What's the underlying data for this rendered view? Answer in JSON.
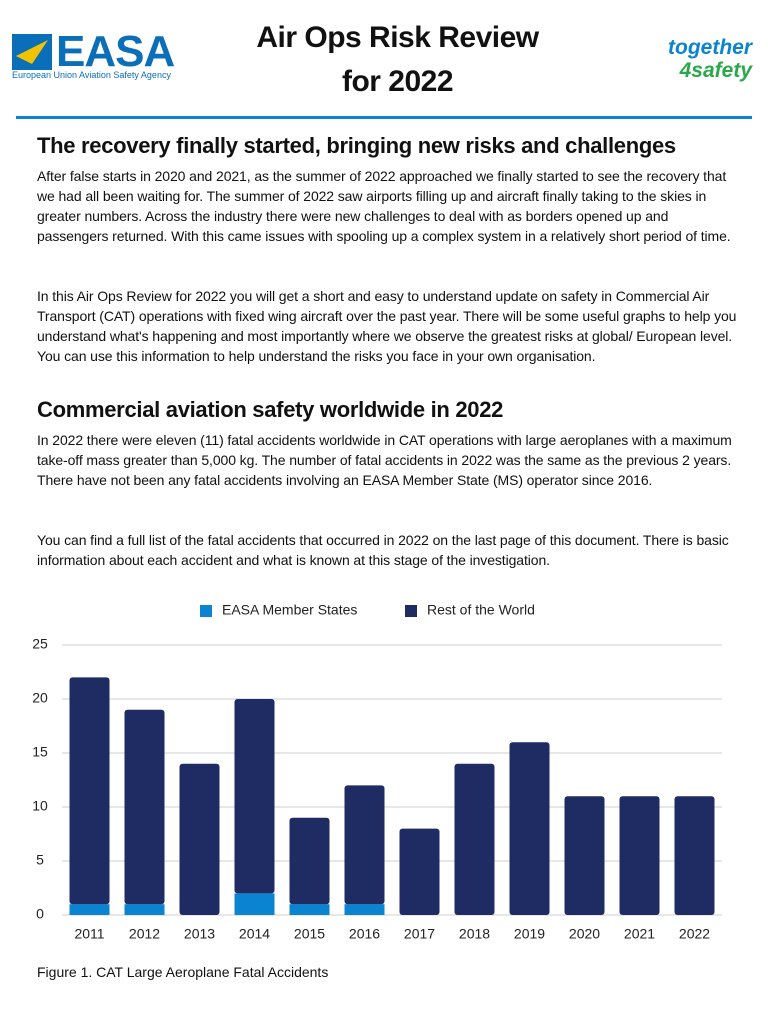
{
  "header": {
    "logo": "EASA",
    "logo_subtitle": "European Union Aviation Safety Agency",
    "title_lines": [
      "Air Ops Risk Review",
      "for 2022"
    ],
    "tagline": [
      "together",
      "4safety"
    ]
  },
  "sections": [
    {
      "heading": "The recovery finally started, bringing new risks and challenges",
      "paragraphs": [
        "After false starts in 2020 and 2021, as the summer of 2022 approached we finally started to see the recovery that we had all been waiting for. The summer of 2022 saw airports filling up and aircraft finally taking to the skies in greater numbers. Across the industry there were new challenges to deal with as borders opened up and passengers returned. With this came issues with spooling up a complex system in a relatively short period of time.",
        "In this Air Ops Review for 2022 you will get a short and easy to understand update on safety in Commercial Air Transport (CAT) operations with fixed wing aircraft over the past year. There will be some useful graphs to help you understand what's happening and most importantly where we observe the greatest risks at global/ European level. You can use this information to help understand the risks you face in your own organisation."
      ]
    },
    {
      "heading": "Commercial aviation safety worldwide in 2022",
      "paragraphs": [
        "In 2022 there were eleven (11) fatal accidents worldwide in CAT operations with large aeroplanes with a maximum take-off mass greater than 5,000 kg. The number of fatal accidents in 2022 was the same as the previous 2 years. There have not been any fatal accidents involving an EASA Member State (MS) operator since 2016.",
        "You can find a full list of the fatal accidents that occurred in 2022 on the last page of this document. There is basic information about each accident and what is known at this stage of the investigation."
      ]
    }
  ],
  "chart_data": {
    "type": "stacked_bar",
    "categories": [
      "2011",
      "2012",
      "2013",
      "2014",
      "2015",
      "2016",
      "2017",
      "2018",
      "2019",
      "2020",
      "2021",
      "2022"
    ],
    "series": [
      {
        "name": "EASA Member States",
        "color": "#0a84d0",
        "values": [
          1,
          1,
          0,
          2,
          1,
          1,
          0,
          0,
          0,
          0,
          0,
          0
        ]
      },
      {
        "name": "Rest of the World",
        "color": "#1f2b63",
        "values": [
          21,
          18,
          14,
          18,
          8,
          11,
          8,
          14,
          16,
          11,
          11,
          11
        ]
      }
    ],
    "ylim": [
      0,
      25
    ],
    "yticks": [
      0,
      5,
      10,
      15,
      20,
      25
    ],
    "grid": true,
    "legend": "top"
  },
  "caption": "Figure 1. CAT Large Aeroplane Fatal Accidents"
}
